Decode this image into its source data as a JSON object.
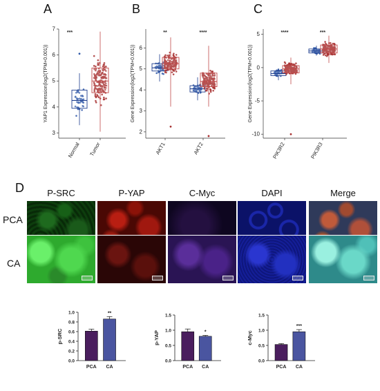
{
  "panel_letters": {
    "a": "A",
    "b": "B",
    "c": "C",
    "d": "D"
  },
  "images": {
    "columns": [
      "P-SRC",
      "P-YAP",
      "C-Myc",
      "DAPI",
      "Merge"
    ],
    "rows": [
      "PCA",
      "CA"
    ]
  },
  "colors": {
    "normal_blue": "#2f58a8",
    "tumor_red": "#a83232",
    "box_blue": "#1f3f8f",
    "box_red": "#c04848",
    "bar_purple": "#4a1e5e",
    "bar_blue": "#4a55a0"
  },
  "chart_data": [
    {
      "id": "A",
      "type": "box",
      "ylabel": "YAP1 Expression(log2(TPM+0.001))",
      "categories": [
        "Normal",
        "Tumor"
      ],
      "significance": [
        "***"
      ],
      "ylim": [
        2.8,
        7.0
      ],
      "yticks": [
        3,
        4,
        5,
        6,
        7
      ],
      "boxes": [
        {
          "name": "Normal",
          "min": 3.3,
          "q1": 3.95,
          "median": 4.25,
          "q3": 4.65,
          "max": 5.3,
          "outliers": [
            6.05
          ]
        },
        {
          "name": "Tumor",
          "min": 3.05,
          "q1": 4.55,
          "median": 5.0,
          "q3": 5.5,
          "max": 6.9,
          "outliers": []
        }
      ]
    },
    {
      "id": "B",
      "type": "box",
      "ylabel": "Gene Expression(log2(TPM+0.001))",
      "categories": [
        "AKT1",
        "AKT2"
      ],
      "significance": [
        "**",
        "****"
      ],
      "ylim": [
        1.7,
        6.9
      ],
      "yticks": [
        2,
        3,
        4,
        5,
        6
      ],
      "boxes": [
        {
          "name": "AKT1 Normal",
          "min": 4.4,
          "q1": 4.9,
          "median": 5.05,
          "q3": 5.25,
          "max": 5.7,
          "outliers": []
        },
        {
          "name": "AKT1 Tumor",
          "min": 3.2,
          "q1": 5.0,
          "median": 5.25,
          "q3": 5.55,
          "max": 6.5,
          "outliers": [
            2.25
          ]
        },
        {
          "name": "AKT2 Normal",
          "min": 3.5,
          "q1": 3.9,
          "median": 4.05,
          "q3": 4.2,
          "max": 4.6,
          "outliers": []
        },
        {
          "name": "AKT2 Tumor",
          "min": 3.2,
          "q1": 4.15,
          "median": 4.4,
          "q3": 4.8,
          "max": 6.1,
          "outliers": [
            1.8
          ]
        }
      ]
    },
    {
      "id": "C",
      "type": "box",
      "ylabel": "Gene Expression(log2(TPM+0.001))",
      "categories": [
        "PIK3R2",
        "PIK3R3"
      ],
      "significance": [
        "****",
        "***"
      ],
      "ylim": [
        -10.6,
        5.8
      ],
      "yticks": [
        -10,
        -5,
        0,
        5
      ],
      "boxes": [
        {
          "name": "PIK3R2 Normal",
          "min": -1.9,
          "q1": -1.2,
          "median": -0.9,
          "q3": -0.5,
          "max": -0.1,
          "outliers": []
        },
        {
          "name": "PIK3R2 Tumor",
          "min": -2.5,
          "q1": -0.8,
          "median": -0.2,
          "q3": 0.3,
          "max": 1.5,
          "outliers": [
            -10.0
          ]
        },
        {
          "name": "PIK3R3 Normal",
          "min": 1.8,
          "q1": 2.2,
          "median": 2.5,
          "q3": 2.8,
          "max": 3.3,
          "outliers": []
        },
        {
          "name": "PIK3R3 Tumor",
          "min": 0.7,
          "q1": 2.2,
          "median": 2.8,
          "q3": 3.4,
          "max": 4.8,
          "outliers": []
        }
      ]
    },
    {
      "id": "p-SRC",
      "type": "bar",
      "ylabel": "p-SRC",
      "categories": [
        "PCA",
        "CA"
      ],
      "values": [
        0.61,
        0.86
      ],
      "errors": [
        0.04,
        0.05
      ],
      "significance": "**",
      "ylim": [
        0,
        1.0
      ],
      "yticks": [
        "0.0",
        "0.2",
        "0.4",
        "0.6",
        "0.8",
        "1.0"
      ]
    },
    {
      "id": "p-YAP",
      "type": "bar",
      "ylabel": "p-YAP",
      "categories": [
        "PCA",
        "CA"
      ],
      "values": [
        0.95,
        0.8
      ],
      "errors": [
        0.09,
        0.03
      ],
      "significance": "*",
      "ylim": [
        0,
        1.5
      ],
      "yticks": [
        "0.0",
        "0.5",
        "1.0",
        "1.5"
      ]
    },
    {
      "id": "c-Myc",
      "type": "bar",
      "ylabel": "c-Myc",
      "categories": [
        "PCA",
        "CA"
      ],
      "values": [
        0.53,
        0.95
      ],
      "errors": [
        0.03,
        0.07
      ],
      "significance": "***",
      "ylim": [
        0,
        1.5
      ],
      "yticks": [
        "0.0",
        "0.5",
        "1.0",
        "1.5"
      ]
    }
  ]
}
